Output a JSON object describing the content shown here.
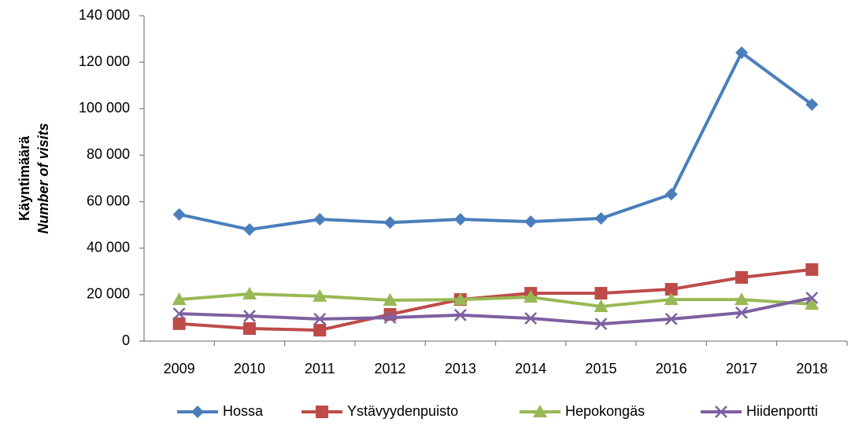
{
  "chart_data": {
    "type": "line",
    "ylabel": [
      "Käyntimäärä",
      "Number of visits"
    ],
    "categories": [
      "2009",
      "2010",
      "2011",
      "2012",
      "2013",
      "2014",
      "2015",
      "2016",
      "2017",
      "2018"
    ],
    "ylim": [
      0,
      140000
    ],
    "yticks": [
      0,
      {
        "value": 20000,
        "label": "20 000"
      },
      {
        "value": 40000,
        "label": "40 000"
      },
      {
        "value": 60000,
        "label": "60 000"
      },
      {
        "value": 80000,
        "label": "80 000"
      },
      {
        "value": 100000,
        "label": "100 000"
      },
      {
        "value": 120000,
        "label": "120 000"
      },
      {
        "value": 140000,
        "label": "140 000"
      }
    ],
    "grid": false,
    "legend": "bottom",
    "series": [
      {
        "name": "Hossa",
        "color": "#4a7ebb",
        "marker": "diamond",
        "values": [
          54500,
          48000,
          52400,
          51000,
          52400,
          51400,
          52800,
          63200,
          124100,
          101800
        ]
      },
      {
        "name": "Ystävyydenpuisto",
        "color": "#be4b48",
        "marker": "square",
        "values": [
          7500,
          5400,
          4700,
          11500,
          17900,
          20600,
          20600,
          22300,
          27400,
          30800
        ]
      },
      {
        "name": "Hepokongäs",
        "color": "#98b954",
        "marker": "triangle",
        "values": [
          17900,
          20300,
          19300,
          17600,
          17900,
          18900,
          14900,
          17900,
          17900,
          15900
        ]
      },
      {
        "name": "Hiidenportti",
        "color": "#7d60a0",
        "marker": "x",
        "values": [
          11800,
          10800,
          9500,
          10100,
          11200,
          9800,
          7400,
          9500,
          12200,
          18600
        ]
      }
    ]
  }
}
